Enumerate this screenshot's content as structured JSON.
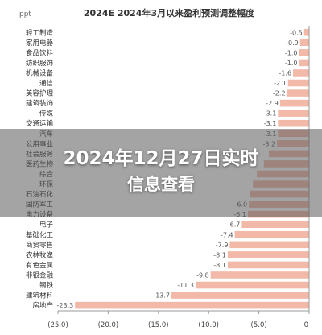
{
  "chart_data": {
    "type": "bar",
    "orientation": "horizontal",
    "title": "2024E 2024年3月以来盈利预测调整幅度",
    "unit_label": "ppt",
    "categories": [
      "轻工制造",
      "家用电器",
      "食品饮料",
      "纺织服饰",
      "机械设备",
      "通信",
      "美容护理",
      "建筑装饰",
      "传媒",
      "交通运输",
      "汽车",
      "公用事业",
      "社会服务",
      "医药生物",
      "综合",
      "环保",
      "石油石化",
      "国防军工",
      "电力设备",
      "电子",
      "基础化工",
      "商贸零售",
      "农林牧渔",
      "有色金属",
      "非银金融",
      "钢铁",
      "建筑材料",
      "房地产"
    ],
    "values": [
      -0.5,
      -0.9,
      -1.0,
      -1.0,
      -1.6,
      -2.1,
      -2.2,
      -2.9,
      -3.1,
      -3.1,
      -3.1,
      -3.2,
      -4.0,
      -4.5,
      -5.2,
      -5.6,
      -5.9,
      -6.0,
      -6.1,
      -6.7,
      -7.4,
      -7.9,
      -8.1,
      -8.1,
      -9.8,
      -11.3,
      -13.7,
      -23.3
    ],
    "value_labels": [
      "-0.5",
      "-0.9",
      "-1.0",
      "-1.0",
      "-1.6",
      "-2.1",
      "-2.2",
      "-2.9",
      "-3.1",
      "-3.1",
      "-3.1",
      "-3.2",
      "",
      "",
      "",
      "",
      "",
      "-6.0",
      "-6.1",
      "-6.7",
      "-7.4",
      "-7.9",
      "-8.1",
      "-8.1",
      "-9.8",
      "-11.3",
      "-13.7",
      "-23.3"
    ],
    "x_ticks": [
      "(25.0)",
      "(20.0)",
      "(15.0)",
      "(10.0)",
      "(5.0)",
      "0"
    ],
    "x_tick_values": [
      -25,
      -20,
      -15,
      -10,
      -5,
      0
    ],
    "xlim": [
      -25,
      0
    ],
    "bar_color": "#f2b8a8",
    "grid": false
  },
  "overlay": {
    "line1": "2024年12月27日实时",
    "line2": "信息查看"
  }
}
